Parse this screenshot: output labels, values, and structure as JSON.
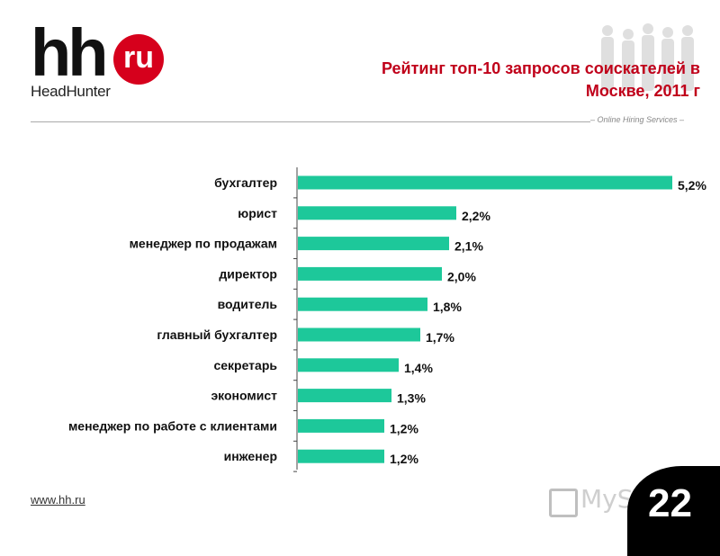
{
  "logo": {
    "mark": "hh",
    "badge": "ru",
    "name": "HeadHunter"
  },
  "header": {
    "title": "Рейтинг топ-10 запросов соискателей в Москве, 2011 г",
    "tagline": "– Online Hiring Services –"
  },
  "footer": {
    "url": "www.hh.ru",
    "watermark": "MyShared",
    "page_number": "22"
  },
  "colors": {
    "bar": "#1dc89a",
    "title": "#c0001a",
    "logo_red": "#d6001c"
  },
  "chart_data": {
    "type": "bar",
    "orientation": "horizontal",
    "categories": [
      "бухгалтер",
      "юрист",
      "менеджер по продажам",
      "директор",
      "водитель",
      "главный бухгалтер",
      "секретарь",
      "экономист",
      "менеджер по работе с клиентами",
      "инженер"
    ],
    "values": [
      5.2,
      2.2,
      2.1,
      2.0,
      1.8,
      1.7,
      1.4,
      1.3,
      1.2,
      1.2
    ],
    "value_labels": [
      "5,2%",
      "2,2%",
      "2,1%",
      "2,0%",
      "1,8%",
      "1,7%",
      "1,4%",
      "1,3%",
      "1,2%",
      "1,2%"
    ],
    "xlim": [
      0,
      5.2
    ],
    "grid": false
  }
}
